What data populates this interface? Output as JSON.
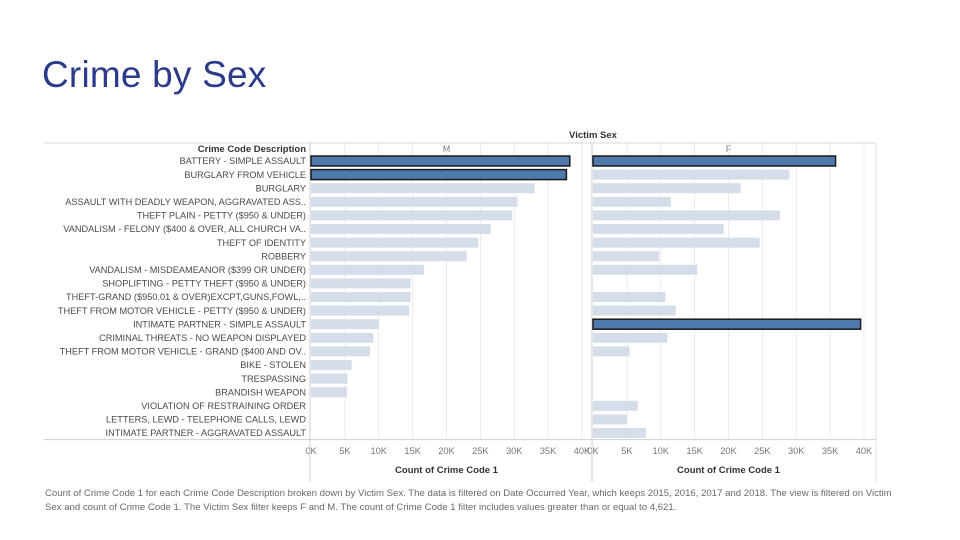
{
  "slide": {
    "title": "Crime by Sex",
    "caption": "Count of Crime Code 1 for each Crime Code Description broken down by Victim Sex. The data is filtered on Date Occurred Year, which keeps 2015, 2016, 2017 and 2018. The view is filtered on Victim Sex and count of Crime Code 1. The Victim Sex filter keeps F and M. The count of Crime Code 1 filter includes values greater than or equal to 4,621."
  },
  "colors": {
    "highlight": "#4f79ad",
    "highlight_border": "#1a1a1a",
    "bar": "#d4dde8",
    "grid": "#e6e6e6",
    "text": "#4a4a4a",
    "title": "#2b3a8a"
  },
  "chart_data": {
    "type": "bar",
    "orientation": "horizontal",
    "title": "",
    "column_header": "Victim Sex",
    "row_header": "Crime Code Description",
    "xlabel": "Count of Crime Code 1",
    "xlim": [
      0,
      40000
    ],
    "x_ticks": [
      "0K",
      "5K",
      "10K",
      "15K",
      "20K",
      "25K",
      "30K",
      "35K",
      "40K"
    ],
    "grid": true,
    "categories": [
      "BATTERY - SIMPLE ASSAULT",
      "BURGLARY FROM VEHICLE",
      "BURGLARY",
      "ASSAULT WITH DEADLY WEAPON, AGGRAVATED ASS..",
      "THEFT PLAIN - PETTY ($950 & UNDER)",
      "VANDALISM - FELONY ($400 & OVER, ALL CHURCH VA..",
      "THEFT OF IDENTITY",
      "ROBBERY",
      "VANDALISM - MISDEAMEANOR ($399 OR UNDER)",
      "SHOPLIFTING - PETTY THEFT ($950 & UNDER)",
      "THEFT-GRAND ($950.01 & OVER)EXCPT,GUNS,FOWL,..",
      "THEFT FROM MOTOR VEHICLE - PETTY ($950 & UNDER)",
      "INTIMATE PARTNER - SIMPLE ASSAULT",
      "CRIMINAL THREATS - NO WEAPON DISPLAYED",
      "THEFT FROM MOTOR VEHICLE - GRAND ($400 AND OV..",
      "BIKE - STOLEN",
      "TRESPASSING",
      "BRANDISH WEAPON",
      "VIOLATION OF RESTRAINING ORDER",
      "LETTERS, LEWD  -  TELEPHONE CALLS, LEWD",
      "INTIMATE PARTNER - AGGRAVATED ASSAULT"
    ],
    "series": [
      {
        "name": "M",
        "values": [
          38200,
          37700,
          33000,
          30500,
          29700,
          26500,
          24700,
          23000,
          16700,
          14700,
          14700,
          14500,
          10000,
          9200,
          8700,
          6000,
          5400,
          5300,
          null,
          null,
          null
        ],
        "highlighted": [
          true,
          true,
          false,
          false,
          false,
          false,
          false,
          false,
          false,
          false,
          false,
          false,
          false,
          false,
          false,
          false,
          false,
          false,
          false,
          false,
          false
        ]
      },
      {
        "name": "F",
        "values": [
          35800,
          29000,
          21800,
          11500,
          27600,
          19300,
          24600,
          9800,
          15400,
          null,
          10700,
          12200,
          39500,
          11000,
          5400,
          null,
          null,
          null,
          6600,
          5000,
          7800
        ],
        "highlighted": [
          true,
          false,
          false,
          false,
          false,
          false,
          false,
          false,
          false,
          false,
          false,
          false,
          true,
          false,
          false,
          false,
          false,
          false,
          false,
          false,
          false
        ]
      }
    ]
  }
}
